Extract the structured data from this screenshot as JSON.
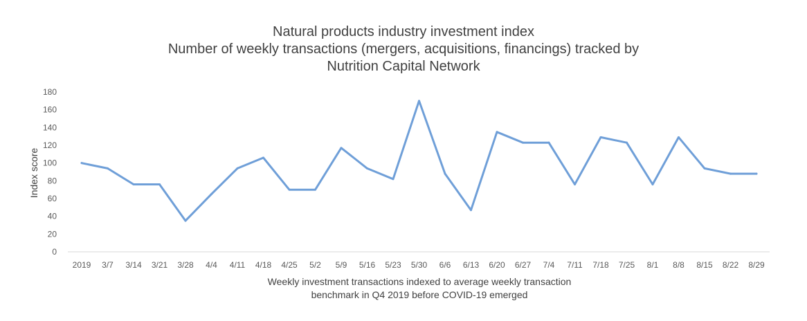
{
  "chart_data": {
    "type": "line",
    "title": "Natural products industry investment index",
    "subtitle_lines": [
      "Number of weekly transactions (mergers, acquisitions, financings) tracked by",
      "Nutrition Capital Network"
    ],
    "xlabel_lines": [
      "Weekly investment transactions indexed to average weekly transaction",
      "benchmark in Q4 2019 before COVID-19 emerged"
    ],
    "ylabel": "Index score",
    "ylim": [
      0,
      180
    ],
    "yticks": [
      0,
      20,
      40,
      60,
      80,
      100,
      120,
      140,
      160,
      180
    ],
    "grid": false,
    "legend": "none",
    "color": "#6f9fd8",
    "categories": [
      "2019",
      "3/7",
      "3/14",
      "3/21",
      "3/28",
      "4/4",
      "4/11",
      "4/18",
      "4/25",
      "5/2",
      "5/9",
      "5/16",
      "5/23",
      "5/30",
      "6/6",
      "6/13",
      "6/20",
      "6/27",
      "7/4",
      "7/11",
      "7/18",
      "7/25",
      "8/1",
      "8/8",
      "8/15",
      "8/22",
      "8/29"
    ],
    "series": [
      {
        "values": [
          100,
          94,
          76,
          76,
          35,
          65,
          94,
          106,
          70,
          70,
          117,
          94,
          82,
          170,
          88,
          47,
          135,
          123,
          123,
          76,
          129,
          123,
          76,
          129,
          94,
          88,
          88
        ]
      }
    ]
  }
}
